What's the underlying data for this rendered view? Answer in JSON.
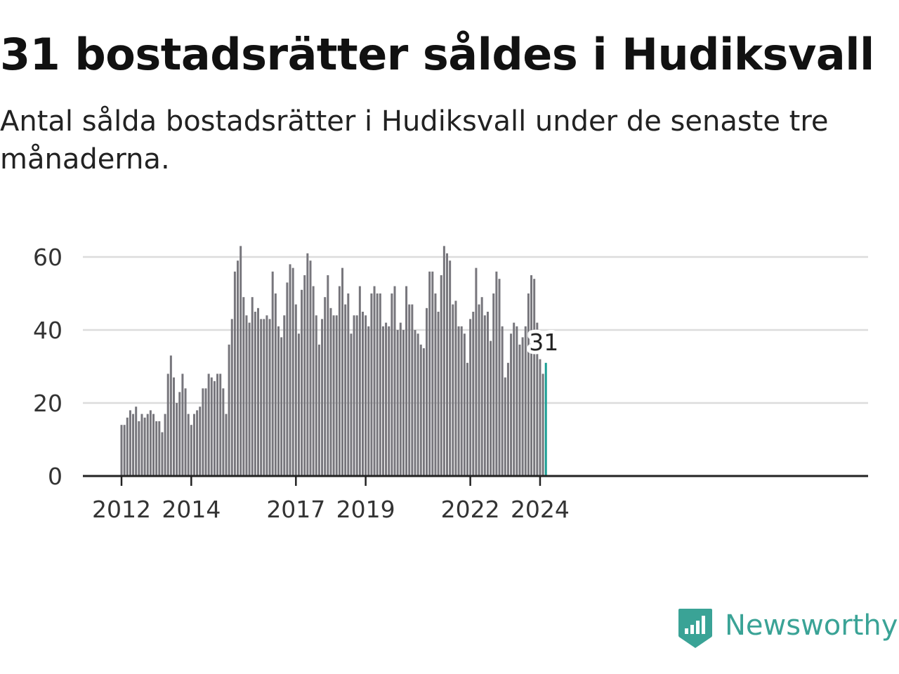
{
  "header": {
    "title": "31 bostadsrätter såldes i Hudiksvall",
    "subtitle": "Antal sålda bostadsrätter i Hudiksvall under de senaste tre månaderna."
  },
  "brand": {
    "name": "Newsworthy",
    "icon": "newsworthy-logo-icon",
    "color": "#3aa396"
  },
  "colors": {
    "bar": "#77767c",
    "highlight": "#1a9e94",
    "grid": "#dcdcdc",
    "axis": "#222222"
  },
  "chart_data": {
    "type": "bar",
    "x_start": "2012-01",
    "x_end": "2024-03",
    "period": "month",
    "ylim": [
      0,
      65
    ],
    "yticks": [
      0,
      20,
      40,
      60
    ],
    "xticks": [
      "2012",
      "2014",
      "2017",
      "2019",
      "2022",
      "2024"
    ],
    "grid": true,
    "values": [
      14,
      14,
      16,
      18,
      17,
      19,
      15,
      17,
      16,
      17,
      18,
      17,
      15,
      15,
      12,
      17,
      28,
      33,
      27,
      20,
      23,
      28,
      24,
      17,
      14,
      17,
      18,
      19,
      24,
      24,
      28,
      27,
      26,
      28,
      28,
      24,
      17,
      36,
      43,
      56,
      59,
      63,
      49,
      44,
      42,
      49,
      45,
      46,
      43,
      43,
      44,
      43,
      56,
      50,
      41,
      38,
      44,
      53,
      58,
      57,
      47,
      39,
      51,
      55,
      61,
      59,
      52,
      44,
      36,
      43,
      49,
      55,
      46,
      44,
      44,
      52,
      57,
      47,
      50,
      39,
      44,
      44,
      52,
      45,
      44,
      41,
      50,
      52,
      50,
      50,
      41,
      42,
      41,
      50,
      52,
      40,
      42,
      40,
      52,
      47,
      47,
      40,
      39,
      36,
      35,
      46,
      56,
      56,
      50,
      45,
      55,
      63,
      61,
      59,
      47,
      48,
      41,
      41,
      39,
      31,
      43,
      45,
      57,
      47,
      49,
      44,
      45,
      37,
      50,
      56,
      54,
      41,
      27,
      31,
      39,
      42,
      41,
      36,
      38,
      41,
      50,
      55,
      54,
      42,
      32,
      28,
      31
    ],
    "highlight_index": 146,
    "highlight_label": "31"
  }
}
